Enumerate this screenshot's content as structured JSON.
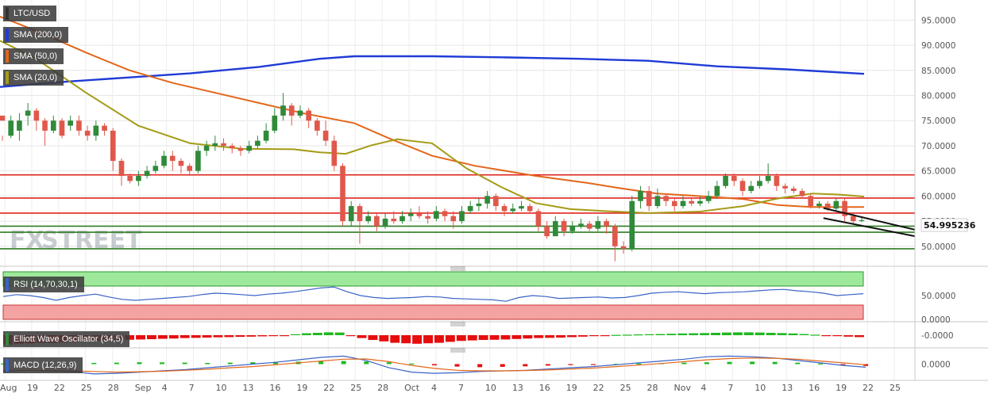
{
  "colors": {
    "bull": "#2f8a3a",
    "bear": "#e0584b",
    "sma200": "#1f3bd6",
    "sma50": "#e3661a",
    "sma20": "#a59b16",
    "red_line": "#e0251e",
    "green_line": "#2e7d22",
    "rsi_line": "#3a63c6",
    "macd_line": "#3a63c6",
    "signal_line": "#e3661a"
  },
  "labels": {
    "pair": "LTC/USD",
    "sma200": "SMA (200,0)",
    "sma50": "SMA (50,0)",
    "sma20": "SMA (20,0)",
    "rsi": "RSI (14,70,30,1)",
    "ewo": "Elliott Wave Oscillator (34,5)",
    "macd": "MACD (12,26,9)",
    "watermark_fx": "FX",
    "watermark_street": "STREET",
    "last_price": "54.995236"
  },
  "chart_data": [
    {
      "type": "candlestick",
      "panel": "price",
      "ylim": [
        46.5,
        99
      ],
      "y_ticks": [
        "95.0000",
        "90.0000",
        "85.0000",
        "80.0000",
        "75.0000",
        "70.0000",
        "65.0000",
        "60.0000",
        "55.0000",
        "50.0000"
      ],
      "x_tick_labels": [
        "Aug",
        "19",
        "22",
        "25",
        "28",
        "Sep",
        "4",
        "7",
        "10",
        "13",
        "16",
        "19",
        "22",
        "25",
        "28",
        "Oct",
        "4",
        "7",
        "10",
        "13",
        "16",
        "19",
        "22",
        "25",
        "28",
        "Nov",
        "4",
        "7",
        "10",
        "13",
        "16",
        "19",
        "22",
        "25"
      ],
      "candles": [
        [
          76,
          75,
          72,
          71
        ],
        [
          72,
          75,
          76,
          71.5
        ],
        [
          73,
          75,
          76.5,
          71
        ],
        [
          76,
          77,
          78.5,
          74
        ],
        [
          77,
          75,
          77.5,
          73
        ],
        [
          75,
          73,
          75.5,
          70
        ],
        [
          73,
          75,
          76,
          72.5
        ],
        [
          75,
          72,
          75.5,
          71.5
        ],
        [
          74,
          75,
          76,
          73
        ],
        [
          75,
          73,
          76,
          72
        ],
        [
          73,
          72,
          74,
          71
        ],
        [
          72,
          74,
          75,
          71
        ],
        [
          74,
          73,
          74.5,
          72
        ],
        [
          73,
          67,
          73.5,
          65
        ],
        [
          67,
          64,
          67.5,
          62
        ],
        [
          64,
          63,
          64.5,
          62.5
        ],
        [
          63,
          64,
          65,
          62
        ],
        [
          64,
          65,
          66,
          63.5
        ],
        [
          65,
          66,
          67,
          64.5
        ],
        [
          66,
          68,
          69,
          65.5
        ],
        [
          68,
          67,
          69,
          65
        ],
        [
          67,
          66,
          67.5,
          64.5
        ],
        [
          66,
          65,
          66.5,
          64
        ],
        [
          65,
          69,
          70,
          64.5
        ],
        [
          69,
          70,
          71,
          68
        ],
        [
          70,
          70.5,
          72,
          69
        ],
        [
          70.5,
          70,
          71.5,
          69
        ],
        [
          70,
          69.5,
          70.5,
          68.5
        ],
        [
          69.5,
          69,
          70,
          68
        ],
        [
          69,
          70,
          71,
          68.5
        ],
        [
          70,
          71,
          72,
          69.5
        ],
        [
          71,
          73,
          74.5,
          70.5
        ],
        [
          73,
          76,
          77.5,
          72.5
        ],
        [
          76,
          78,
          80.5,
          75
        ],
        [
          78,
          76,
          78.5,
          74
        ],
        [
          76,
          77,
          78,
          75.5
        ],
        [
          77,
          75,
          77.5,
          73.5
        ],
        [
          75,
          73,
          75.5,
          72
        ],
        [
          73,
          71,
          75,
          70
        ],
        [
          71,
          66,
          72,
          65
        ],
        [
          66,
          55,
          66.5,
          54
        ],
        [
          55,
          58,
          59,
          54
        ],
        [
          58,
          55,
          58.5,
          50.5
        ],
        [
          55,
          56,
          57,
          54.5
        ],
        [
          56,
          54,
          56.5,
          53
        ],
        [
          54,
          55.5,
          56.5,
          53.5
        ],
        [
          55.5,
          55,
          57,
          54.5
        ],
        [
          55,
          56,
          57,
          54.5
        ],
        [
          56,
          56.5,
          57.5,
          55
        ],
        [
          56.5,
          56,
          58,
          55.5
        ],
        [
          56,
          55.5,
          57,
          54.5
        ],
        [
          55.5,
          57,
          58,
          55
        ],
        [
          57,
          56,
          57.5,
          55
        ],
        [
          56,
          55,
          57,
          53.5
        ],
        [
          55,
          57,
          58,
          54.5
        ],
        [
          57,
          58,
          59,
          56.5
        ],
        [
          58,
          58.5,
          59.5,
          57
        ],
        [
          58.5,
          60,
          61,
          57.5
        ],
        [
          60,
          58,
          60.5,
          57
        ],
        [
          58,
          57,
          58.5,
          56
        ],
        [
          57,
          57.5,
          58.5,
          56.5
        ],
        [
          57.5,
          58,
          59,
          57
        ],
        [
          58,
          57,
          58.5,
          56.5
        ],
        [
          57,
          54,
          57.5,
          53
        ],
        [
          54,
          52,
          55,
          51.5
        ],
        [
          52,
          55,
          56,
          52.5
        ],
        [
          55,
          53,
          55.5,
          52
        ],
        [
          53,
          54,
          55,
          52.5
        ],
        [
          54,
          54.5,
          55.5,
          53.5
        ],
        [
          54.5,
          53.5,
          55,
          53
        ],
        [
          53.5,
          55,
          56,
          53
        ],
        [
          55,
          54,
          55.5,
          52.5
        ],
        [
          54,
          50,
          54.5,
          47
        ],
        [
          50,
          49.5,
          51,
          48.5
        ],
        [
          49.5,
          59,
          60,
          49
        ],
        [
          59,
          61,
          62,
          57.5
        ],
        [
          61,
          58,
          62,
          57
        ],
        [
          58,
          60,
          61.5,
          57.5
        ],
        [
          60,
          59,
          60.5,
          58
        ],
        [
          59,
          58,
          59.5,
          57
        ],
        [
          58,
          59,
          60,
          57.5
        ],
        [
          59,
          58.5,
          59.5,
          58
        ],
        [
          58.5,
          59,
          60,
          58
        ],
        [
          59,
          60,
          61,
          58.5
        ],
        [
          60,
          62,
          63,
          59.5
        ],
        [
          62,
          64,
          64.5,
          61.5
        ],
        [
          64,
          63,
          64.5,
          62
        ],
        [
          63,
          61,
          63.5,
          60
        ],
        [
          61,
          62,
          63,
          60.5
        ],
        [
          62,
          63,
          64,
          61.5
        ],
        [
          63,
          64,
          66.5,
          62.5
        ],
        [
          64,
          62,
          64.5,
          61
        ],
        [
          62,
          61.5,
          62.5,
          60.5
        ],
        [
          61.5,
          61,
          62,
          60.5
        ],
        [
          61,
          60,
          61.5,
          59.5
        ],
        [
          60,
          58,
          60.5,
          57.5
        ],
        [
          58,
          58.5,
          59,
          57.5
        ],
        [
          58.5,
          57.5,
          59,
          57
        ],
        [
          57.5,
          59,
          59.5,
          57
        ],
        [
          59,
          56,
          59.5,
          55
        ],
        [
          56,
          55,
          56.5,
          54.5
        ],
        [
          55,
          55.2,
          56,
          54.8
        ]
      ],
      "series": [
        {
          "name": "SMA (200,0)",
          "values": [
            [
              0,
              81.7
            ],
            [
              0.08,
              82.8
            ],
            [
              0.15,
              83.6
            ],
            [
              0.22,
              84.4
            ],
            [
              0.3,
              85.7
            ],
            [
              0.37,
              87.3
            ],
            [
              0.41,
              87.8
            ],
            [
              0.5,
              87.8
            ],
            [
              0.58,
              87.6
            ],
            [
              0.67,
              87.3
            ],
            [
              0.75,
              86.9
            ],
            [
              0.83,
              85.8
            ],
            [
              0.91,
              85.2
            ],
            [
              1.0,
              84.3
            ]
          ]
        },
        {
          "name": "SMA (50,0)",
          "values": [
            [
              0,
              95.7
            ],
            [
              0.04,
              93
            ],
            [
              0.1,
              88.5
            ],
            [
              0.15,
              85
            ],
            [
              0.2,
              82.5
            ],
            [
              0.25,
              80.5
            ],
            [
              0.3,
              78.5
            ],
            [
              0.35,
              76.5
            ],
            [
              0.41,
              74.5
            ],
            [
              0.45,
              71.5
            ],
            [
              0.5,
              68
            ],
            [
              0.55,
              66
            ],
            [
              0.62,
              64
            ],
            [
              0.68,
              62.6
            ],
            [
              0.72,
              61.5
            ],
            [
              0.76,
              60.5
            ],
            [
              0.8,
              60.1
            ],
            [
              0.86,
              59.4
            ],
            [
              0.9,
              58.2
            ],
            [
              0.94,
              57.8
            ],
            [
              1.0,
              57.8
            ]
          ]
        },
        {
          "name": "SMA (20,0)",
          "values": [
            [
              0,
              90.9
            ],
            [
              0.04,
              87.5
            ],
            [
              0.1,
              80.5
            ],
            [
              0.16,
              74
            ],
            [
              0.22,
              70.5
            ],
            [
              0.28,
              69.4
            ],
            [
              0.34,
              69.3
            ],
            [
              0.37,
              68.7
            ],
            [
              0.4,
              68.4
            ],
            [
              0.43,
              70.1
            ],
            [
              0.46,
              71.3
            ],
            [
              0.5,
              70.5
            ],
            [
              0.54,
              65.5
            ],
            [
              0.58,
              61.8
            ],
            [
              0.62,
              58.6
            ],
            [
              0.66,
              57.4
            ],
            [
              0.7,
              57.0
            ],
            [
              0.75,
              56.6
            ],
            [
              0.81,
              56.9
            ],
            [
              0.86,
              58.0
            ],
            [
              0.9,
              59.5
            ],
            [
              0.94,
              60.5
            ],
            [
              0.97,
              60.3
            ],
            [
              1.0,
              59.9
            ]
          ]
        }
      ],
      "horizontal_lines": [
        {
          "value": 64.2,
          "color": "red"
        },
        {
          "value": 59.6,
          "color": "red"
        },
        {
          "value": 56.6,
          "color": "red"
        },
        {
          "value": 54.0,
          "color": "green"
        },
        {
          "value": 52.8,
          "color": "green"
        },
        {
          "value": 49.5,
          "color": "green"
        }
      ],
      "trendlines": [
        {
          "from": [
            0.9,
            57.6
          ],
          "to": [
            1.0,
            53.3
          ]
        },
        {
          "from": [
            0.9,
            55.6
          ],
          "to": [
            1.0,
            52.0
          ]
        }
      ],
      "last_value": 54.995236
    },
    {
      "type": "line",
      "panel": "rsi",
      "title": "RSI (14,70,30,1)",
      "ylim": [
        0,
        100
      ],
      "y_ticks": [
        "50.0000",
        "0.0000"
      ],
      "zones": {
        "overbought": [
          70,
          100
        ],
        "oversold": [
          0,
          30
        ]
      },
      "values": [
        48,
        52,
        50,
        46,
        40,
        46,
        50,
        53,
        47,
        42,
        40,
        42,
        44,
        46,
        48,
        52,
        55,
        54,
        52,
        50,
        53,
        55,
        58,
        62,
        66,
        68,
        58,
        50,
        46,
        44,
        45,
        46,
        48,
        47,
        44,
        43,
        42,
        41,
        38,
        46,
        50,
        48,
        44,
        45,
        46,
        47,
        45,
        46,
        50,
        55,
        57,
        58,
        56,
        54,
        56,
        57,
        58,
        60,
        62,
        63,
        60,
        58,
        55,
        50,
        52,
        54
      ]
    },
    {
      "type": "bar",
      "panel": "ewo",
      "title": "Elliott Wave Oscillator (34,5)",
      "ylim": [
        -1,
        1
      ],
      "y_ticks": [
        "-0.0000"
      ],
      "values": [
        -1,
        -0.9,
        -0.85,
        -0.8,
        -0.8,
        -0.75,
        -0.7,
        -0.65,
        -0.6,
        -0.55,
        -0.5,
        -0.48,
        -0.45,
        -0.42,
        -0.38,
        -0.35,
        -0.3,
        -0.28,
        -0.25,
        -0.22,
        -0.2,
        -0.17,
        -0.15,
        -0.12,
        -0.1,
        -0.08,
        0.1,
        0.2,
        0.25,
        0.3,
        0.28,
        -0.1,
        -0.3,
        -0.5,
        -0.65,
        -0.8,
        -0.85,
        -0.9,
        -0.85,
        -0.8,
        -0.7,
        -0.6,
        -0.55,
        -0.5,
        -0.48,
        -0.45,
        -0.4,
        -0.35,
        -0.3,
        -0.28,
        -0.25,
        -0.2,
        -0.15,
        -0.1,
        -0.05,
        0.03,
        0.05,
        0.08,
        0.1,
        0.12,
        0.15,
        0.18,
        0.2,
        0.22,
        0.25,
        0.28,
        0.3,
        0.3,
        0.28,
        0.25,
        0.22,
        0.18,
        0.12,
        0.05,
        -0.05,
        -0.1,
        -0.15,
        -0.2
      ]
    },
    {
      "type": "line",
      "panel": "macd",
      "title": "MACD (12,26,9)",
      "ylim": [
        -1,
        1
      ],
      "y_ticks": [
        "0.0000"
      ],
      "macd": [
        -0.6,
        -0.5,
        -0.55,
        -0.6,
        -0.8,
        -0.75,
        -0.65,
        -0.55,
        -0.45,
        -0.3,
        -0.15,
        0.0,
        0.15,
        0.35,
        0.55,
        0.65,
        0.3,
        -0.3,
        -0.65,
        -0.75,
        -0.7,
        -0.6,
        -0.55,
        -0.5,
        -0.4,
        -0.3,
        -0.2,
        -0.05,
        0.1,
        0.25,
        0.4,
        0.6,
        0.65,
        0.6,
        0.5,
        0.3,
        0.1,
        -0.1,
        -0.25
      ],
      "signal": [
        -0.5,
        -0.5,
        -0.52,
        -0.55,
        -0.6,
        -0.65,
        -0.62,
        -0.58,
        -0.5,
        -0.42,
        -0.3,
        -0.2,
        -0.05,
        0.1,
        0.25,
        0.4,
        0.42,
        0.2,
        -0.1,
        -0.35,
        -0.5,
        -0.55,
        -0.55,
        -0.52,
        -0.48,
        -0.4,
        -0.32,
        -0.2,
        -0.08,
        0.05,
        0.2,
        0.35,
        0.45,
        0.5,
        0.48,
        0.4,
        0.25,
        0.1,
        -0.05
      ],
      "histogram": [
        0.05,
        0.1,
        0.08,
        0.06,
        0.1,
        0.12,
        0.15,
        0.14,
        0.12,
        0.1,
        0.12,
        0.15,
        0.18,
        0.2,
        0.22,
        0.25,
        0.22,
        0.15,
        0.05,
        -0.1,
        -0.2,
        -0.25,
        -0.22,
        -0.18,
        -0.12,
        -0.08,
        -0.05,
        0.02,
        0.05,
        0.08,
        0.12,
        0.15,
        0.18,
        0.2,
        0.18,
        0.12,
        0.05,
        -0.08,
        -0.15
      ]
    }
  ]
}
